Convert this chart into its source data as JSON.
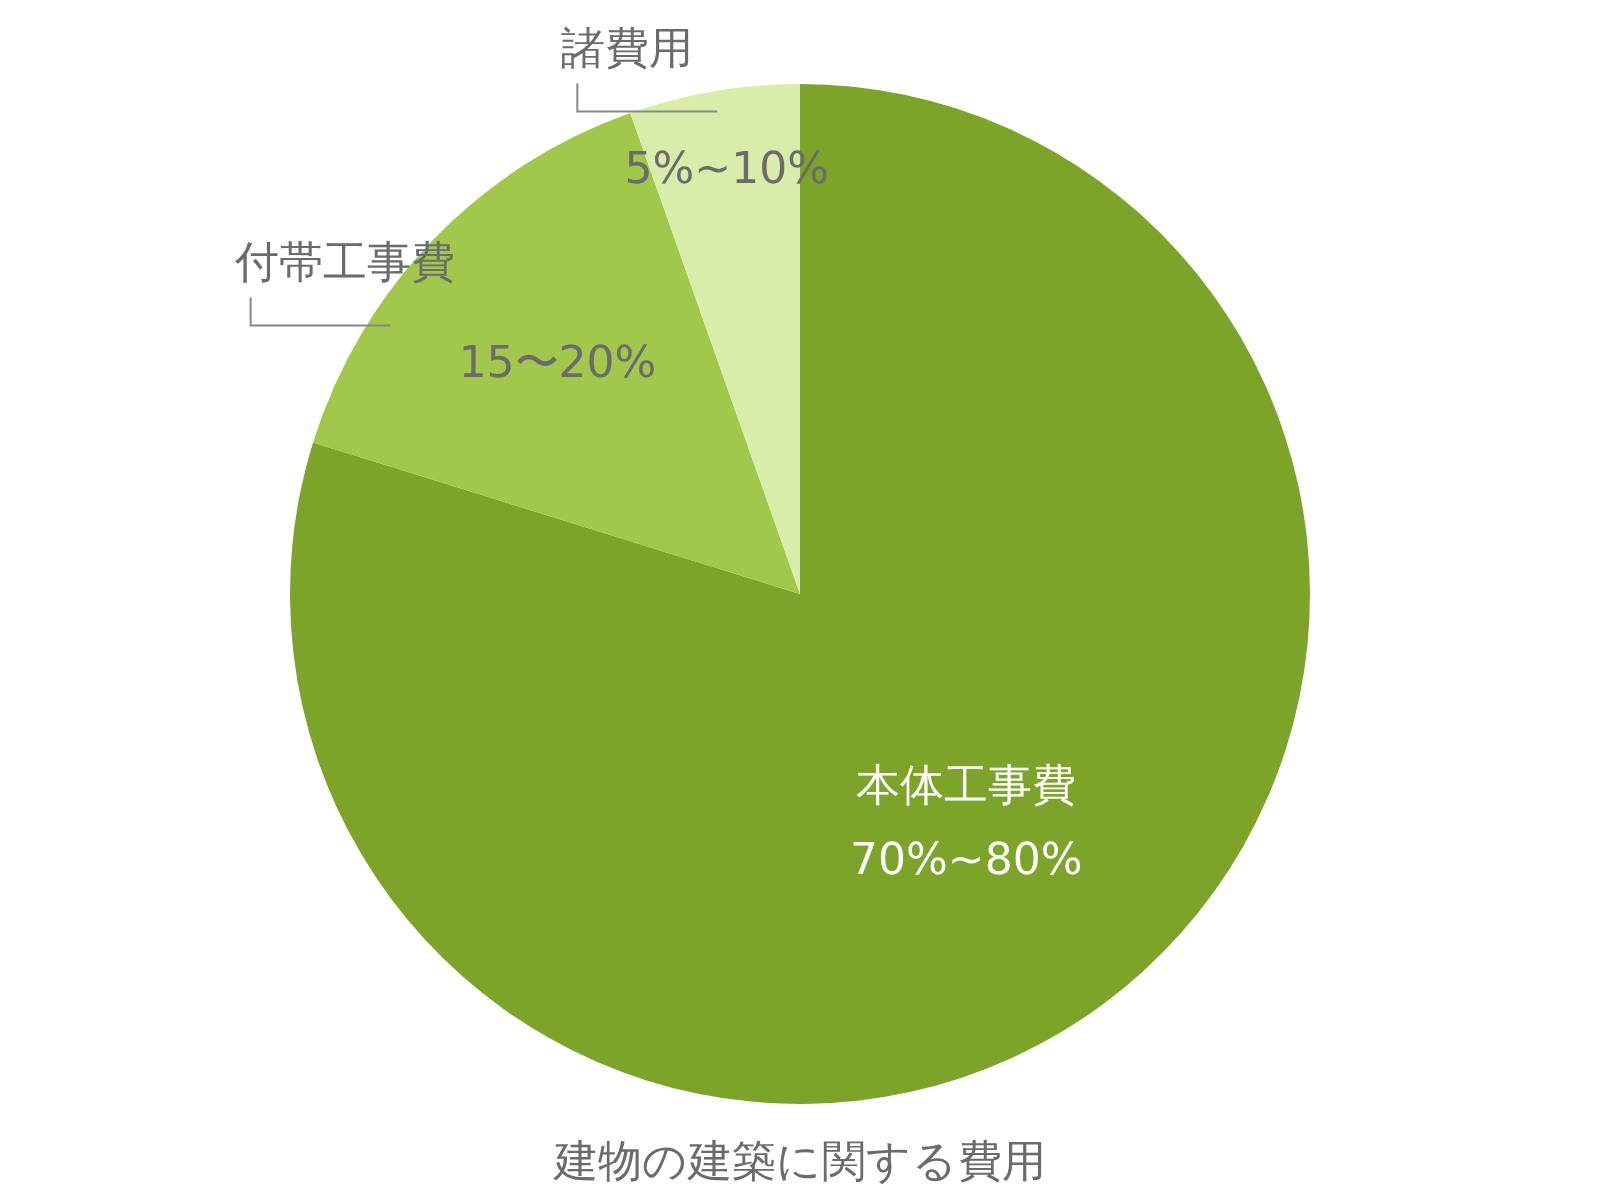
{
  "chart_data": {
    "type": "pie",
    "title": "建物の建築に関する費用",
    "categories": [
      "本体工事費",
      "付帯工事費",
      "諸費用"
    ],
    "values": [
      79.8,
      14.8,
      5.4
    ],
    "colors": [
      "#7ba428",
      "#a1c84a",
      "#d9edab"
    ],
    "value_labels": [
      "70%~80%",
      "15〜20%",
      "5%~10%"
    ]
  }
}
